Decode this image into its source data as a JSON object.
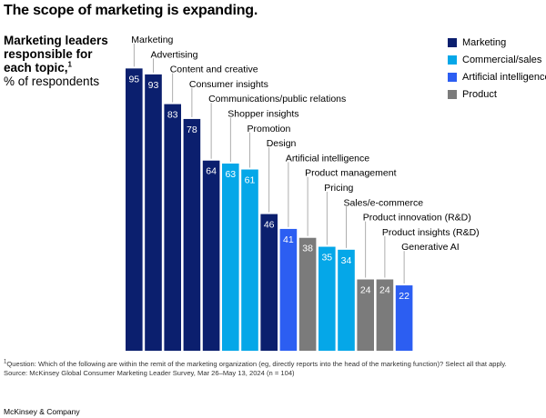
{
  "title": "The scope of marketing is expanding.",
  "subtitle": {
    "main": "Marketing leaders responsible for each topic,",
    "footnote_ref": "1",
    "unit": "% of respondents"
  },
  "legend": [
    {
      "label": "Marketing",
      "color": "#0b1f6e"
    },
    {
      "label": "Commercial/sales",
      "color": "#05a7e8"
    },
    {
      "label": "Artificial intelligence",
      "color": "#2c5ef2"
    },
    {
      "label": "Product",
      "color": "#7b7b7b"
    }
  ],
  "chart_data": {
    "type": "bar",
    "categories": [
      "Marketing",
      "Advertising",
      "Content and creative",
      "Consumer insights",
      "Communications/public relations",
      "Shopper insights",
      "Promotion",
      "Design",
      "Artificial intelligence",
      "Product management",
      "Pricing",
      "Sales/e-commerce",
      "Product innovation (R&D)",
      "Product insights (R&D)",
      "Generative AI"
    ],
    "values": [
      95,
      93,
      83,
      78,
      64,
      63,
      61,
      46,
      41,
      38,
      35,
      34,
      24,
      24,
      22
    ],
    "groups": [
      "Marketing",
      "Marketing",
      "Marketing",
      "Marketing",
      "Marketing",
      "Commercial/sales",
      "Commercial/sales",
      "Marketing",
      "Artificial intelligence",
      "Product",
      "Commercial/sales",
      "Commercial/sales",
      "Product",
      "Product",
      "Artificial intelligence"
    ],
    "ylim": [
      0,
      100
    ]
  },
  "footnote": {
    "ref": "1",
    "question": "Question: Which of the following are within the remit of the marketing organization (eg, directly reports into the head of the marketing function)? Select all that apply.",
    "source": "Source: McKinsey Global Consumer Marketing Leader Survey, Mar 26–May 13, 2024 (n = 104)"
  },
  "brand": "McKinsey & Company"
}
